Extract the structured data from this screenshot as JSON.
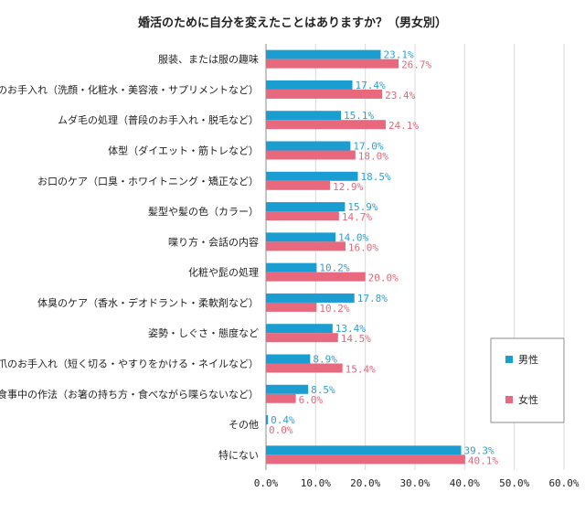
{
  "chart_data": {
    "type": "bar",
    "orientation": "horizontal",
    "title": "婚活のために自分を変えたことはありますか？（男女別）",
    "categories": [
      "服装、または服の趣味",
      "肌のお手入れ（洗顔・化粧水・美容液・サプリメントなど）",
      "ムダ毛の処理（普段のお手入れ・脱毛など）",
      "体型（ダイエット・筋トレなど）",
      "お口のケア（口臭・ホワイトニング・矯正など）",
      "髪型や髪の色（カラー）",
      "喋り方・会話の内容",
      "化粧や髭の処理",
      "体臭のケア（香水・デオドラント・柔軟剤など）",
      "姿勢・しぐさ・態度など",
      "爪のお手入れ（短く切る・やすりをかける・ネイルなど）",
      "食事中の作法（お箸の持ち方・食べながら喋らないなど）",
      "その他",
      "特にない"
    ],
    "series": [
      {
        "name": "男性",
        "color": "#1a9dd1",
        "values": [
          23.1,
          17.4,
          15.1,
          17.0,
          18.5,
          15.9,
          14.0,
          10.2,
          17.8,
          13.4,
          8.9,
          8.5,
          0.4,
          39.3
        ],
        "labels": [
          "23.1%",
          "17.4%",
          "15.1%",
          "17.0%",
          "18.5%",
          "15.9%",
          "14.0%",
          "10.2%",
          "17.8%",
          "13.4%",
          "8.9%",
          "8.5%",
          "0.4%",
          "39.3%"
        ]
      },
      {
        "name": "女性",
        "color": "#e8697d",
        "values": [
          26.7,
          23.4,
          24.1,
          18.0,
          12.9,
          14.7,
          16.0,
          20.0,
          10.2,
          14.5,
          15.4,
          6.0,
          0.0,
          40.1
        ],
        "labels": [
          "26.7%",
          "23.4%",
          "24.1%",
          "18.0%",
          "12.9%",
          "14.7%",
          "16.0%",
          "20.0%",
          "10.2%",
          "14.5%",
          "15.4%",
          "6.0%",
          "0.0%",
          "40.1%"
        ]
      }
    ],
    "xlim": [
      0,
      60
    ],
    "ticks": [
      0,
      10,
      20,
      30,
      40,
      50,
      60
    ],
    "tick_labels": [
      "0.0%",
      "10.0%",
      "20.0%",
      "30.0%",
      "40.0%",
      "50.0%",
      "60.0%"
    ],
    "grid": true,
    "legend_position": "right"
  }
}
